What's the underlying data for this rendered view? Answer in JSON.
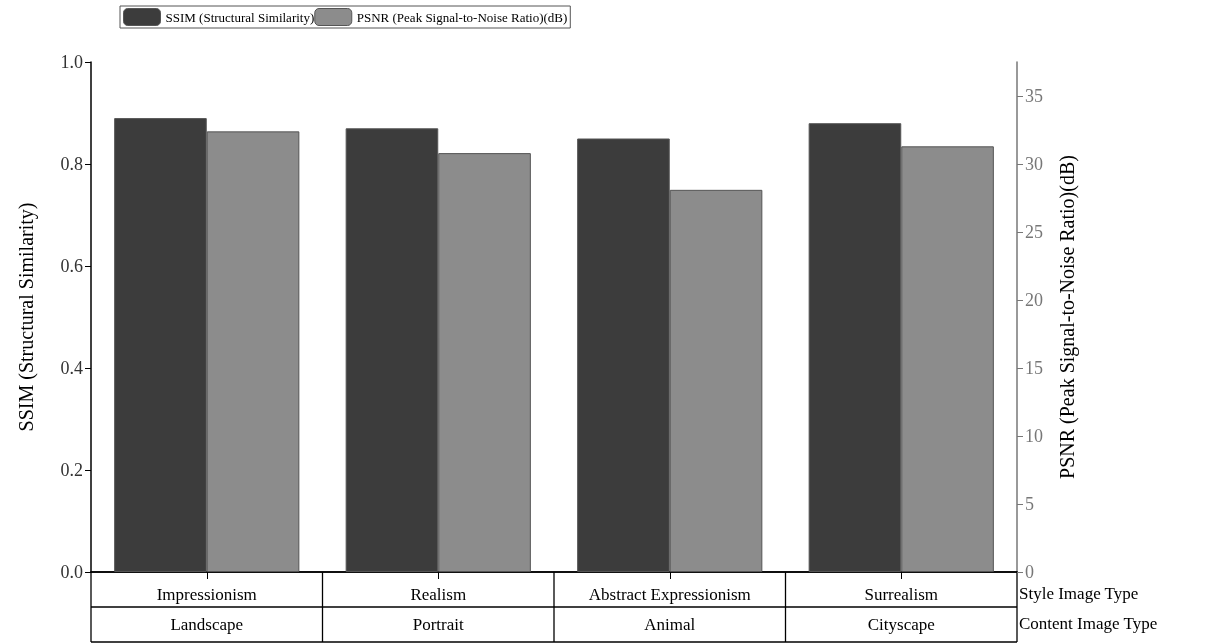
{
  "chart_data": {
    "type": "bar",
    "categories": [
      "Impressionism",
      "Realism",
      "Abstract Expressionism",
      "Surrealism"
    ],
    "xlabel": "Style Image Type",
    "ylabel": "SSIM (Structural Similarity)",
    "y2label": "PSNR (Peak Signal-to-Noise Ratio)(dB)",
    "series": [
      {
        "name": "SSIM (Structural Similarity)",
        "color": "#3c3c3c",
        "values": [
          0.89,
          0.87,
          0.85,
          0.88
        ]
      },
      {
        "name": "PSNR (Peak Signal-to-Noise Ratio)(dB)",
        "color": "#8c8c8c",
        "axis": "y2",
        "values": [
          32.4,
          30.8,
          28.1,
          31.3
        ]
      }
    ],
    "ylim": [
      0,
      1
    ],
    "yticks": [
      {
        "value": 0,
        "label": "0.0"
      },
      0.2,
      0.4,
      0.6,
      0.8,
      {
        "value": 1,
        "label": "1.0"
      }
    ],
    "y2lim": [
      0,
      37.5
    ],
    "y2ticks": [
      0,
      5,
      10,
      15,
      20,
      25,
      30,
      35
    ],
    "annotations": [
      "Landscape",
      "Portrait",
      "Animal",
      "Cityscape",
      "Content Image Type"
    ],
    "legend": "top left",
    "grid": false
  }
}
